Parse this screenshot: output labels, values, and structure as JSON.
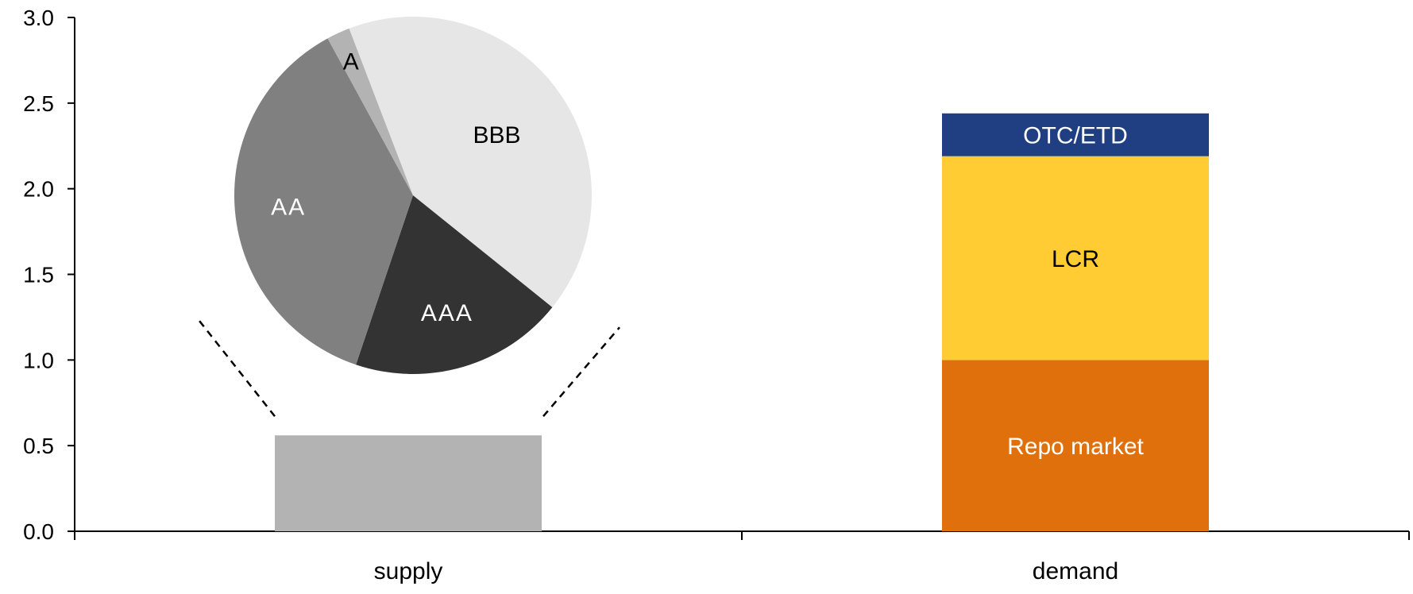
{
  "chart_data": {
    "type": "bar",
    "stacked": true,
    "categories": [
      "supply",
      "demand"
    ],
    "ylim": [
      0,
      3.0
    ],
    "yticks": [
      "0.0",
      "0.5",
      "1.0",
      "1.5",
      "2.0",
      "2.5",
      "3.0"
    ],
    "grid": false,
    "series": [
      {
        "label": "",
        "color": "#b3b3b3",
        "values": [
          0.56,
          0
        ],
        "text_color": "#000000"
      },
      {
        "label": "Repo market",
        "color": "#e0700c",
        "values": [
          0,
          1.0
        ],
        "text_color": "#ffffff"
      },
      {
        "label": "LCR",
        "color": "#ffcc33",
        "values": [
          0,
          1.19
        ],
        "text_color": "#000000"
      },
      {
        "label": "OTC/ETD",
        "color": "#1f3f82",
        "values": [
          0,
          0.25
        ],
        "text_color": "#ffffff"
      }
    ],
    "inset_pie": {
      "of_category": "supply",
      "slices": [
        {
          "label": "BBB",
          "share": 0.416,
          "color": "#e6e6e6",
          "text_color": "#000000"
        },
        {
          "label": "AAA",
          "share": 0.194,
          "color": "#333333",
          "text_color": "#ffffff"
        },
        {
          "label": "AA",
          "share": 0.369,
          "color": "#808080",
          "text_color": "#ffffff"
        },
        {
          "label": "A",
          "share": 0.021,
          "color": "#b3b3b3",
          "text_color": "#000000"
        }
      ]
    }
  }
}
